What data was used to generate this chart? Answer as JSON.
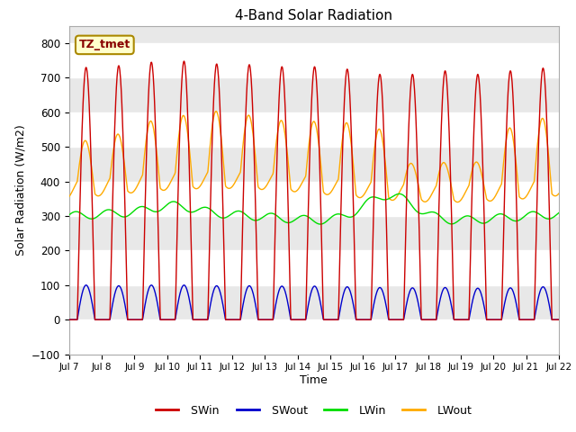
{
  "title": "4-Band Solar Radiation",
  "xlabel": "Time",
  "ylabel": "Solar Radiation (W/m2)",
  "ylim": [
    -100,
    850
  ],
  "yticks": [
    -100,
    0,
    100,
    200,
    300,
    400,
    500,
    600,
    700,
    800
  ],
  "num_days": 15,
  "SWin_color": "#cc0000",
  "SWout_color": "#0000cc",
  "LWin_color": "#00dd00",
  "LWout_color": "#ffaa00",
  "plot_bg_color": "#e8e8e8",
  "annotation_text": "TZ_tmet",
  "annotation_bg": "#ffffcc",
  "annotation_border": "#aa8800",
  "x_tick_labels": [
    "Jul 7",
    "Jul 8",
    "Jul 9",
    "Jul 10",
    "Jul 11",
    "Jul 12",
    "Jul 13",
    "Jul 14",
    "Jul 15",
    "Jul 16",
    "Jul 17",
    "Jul 18",
    "Jul 19",
    "Jul 20",
    "Jul 21",
    "Jul 22"
  ],
  "line_width": 1.0
}
